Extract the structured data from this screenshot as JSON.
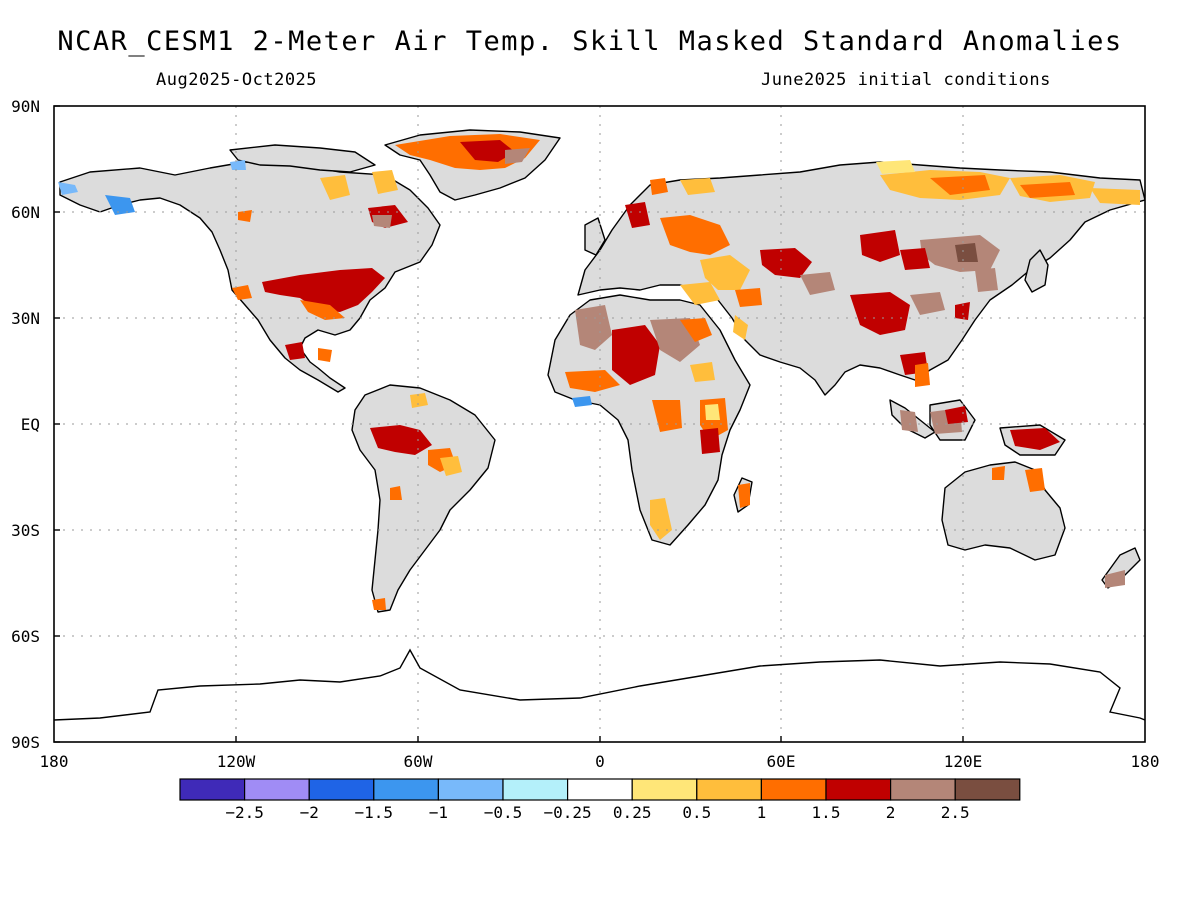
{
  "header": {
    "title": "NCAR_CESM1 2-Meter Air Temp. Skill Masked Standard Anomalies",
    "period": "Aug2025-Oct2025",
    "init": "June2025 initial conditions"
  },
  "axes": {
    "lat_labels": [
      "90N",
      "60N",
      "30N",
      "EQ",
      "30S",
      "60S",
      "90S"
    ],
    "lon_labels": [
      "180",
      "120W",
      "60W",
      "0",
      "60E",
      "120E",
      "180"
    ]
  },
  "colorbar": {
    "colors": [
      "#3f2ab8",
      "#a08cf5",
      "#1f64e6",
      "#3c96ef",
      "#78b9fa",
      "#b4f0fa",
      "#ffffff",
      "#ffe678",
      "#ffbe3c",
      "#ff6e00",
      "#c00000",
      "#b48678",
      "#7a4e40"
    ],
    "labels": [
      "-2.5",
      "-2",
      "-1.5",
      "-1",
      "-0.5",
      "-0.25",
      "0.25",
      "0.5",
      "1",
      "1.5",
      "2",
      "2.5"
    ]
  },
  "map_colors": {
    "land": "#dcdcdc",
    "coast": "#000000",
    "grid": "#9a9a9a"
  }
}
